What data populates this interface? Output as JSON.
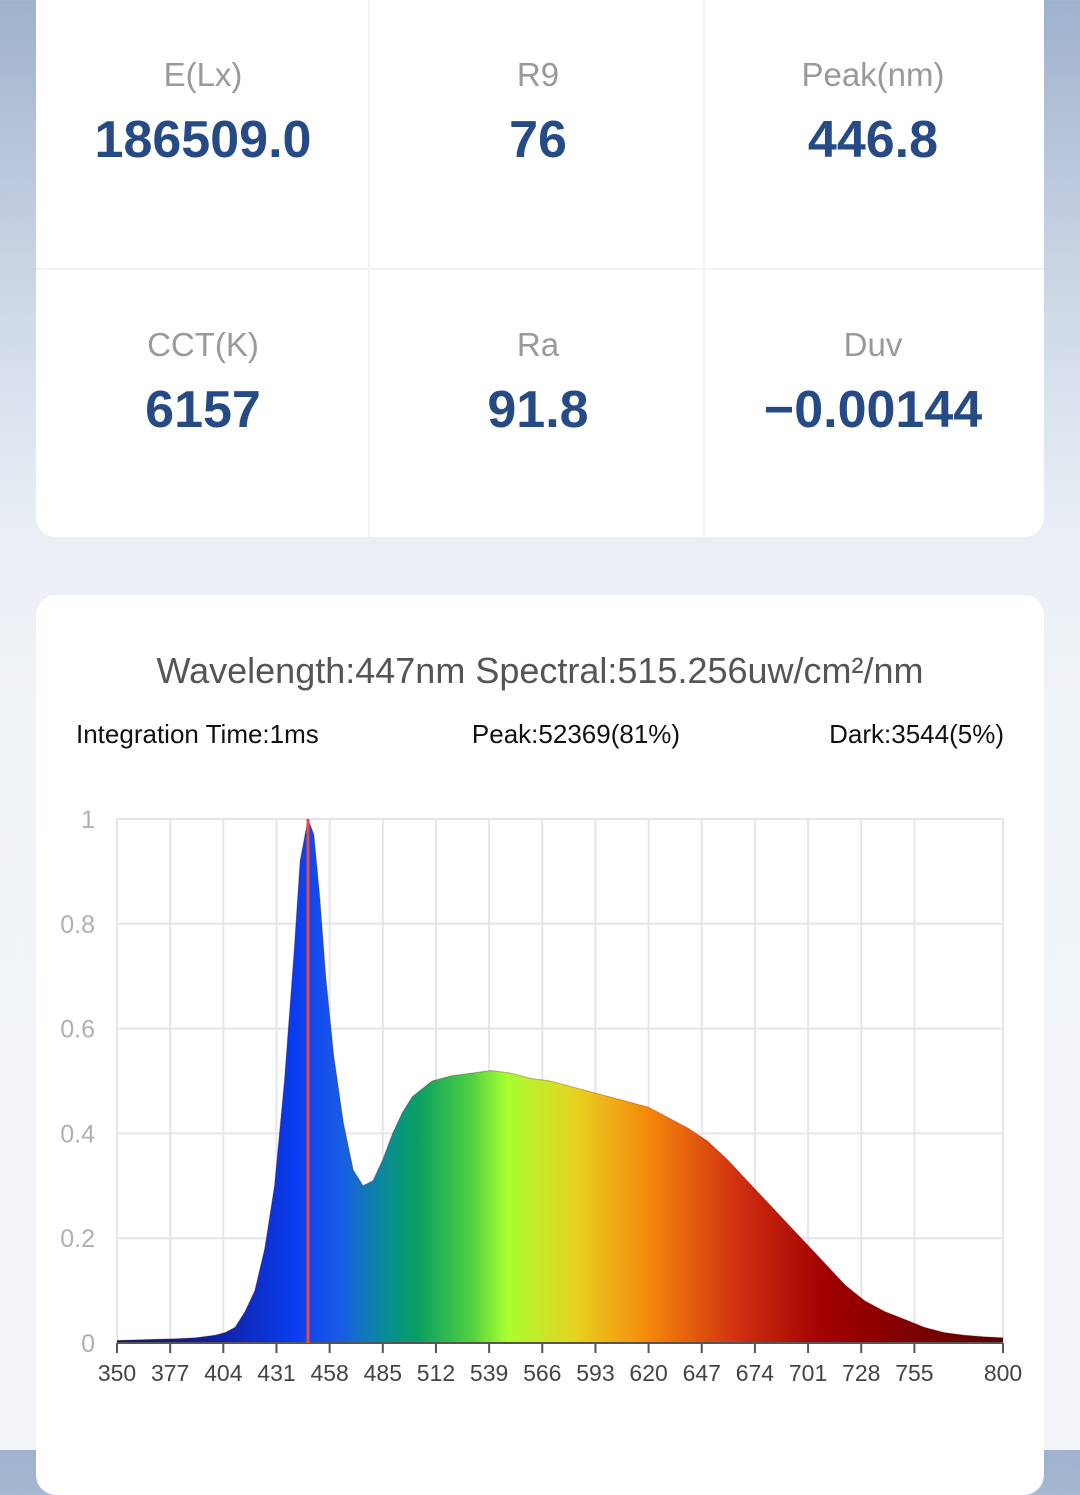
{
  "metrics": [
    {
      "label": "E(Lx)",
      "value": "186509.0"
    },
    {
      "label": "R9",
      "value": "76"
    },
    {
      "label": "Peak(nm)",
      "value": "446.8"
    },
    {
      "label": "CCT(K)",
      "value": "6157"
    },
    {
      "label": "Ra",
      "value": "91.8"
    },
    {
      "label": "Duv",
      "value": "−0.00144"
    }
  ],
  "header": {
    "title": "Wavelength:447nm Spectral:515.256uw/cm²/nm",
    "integration": "Integration Time:1ms",
    "peak": "Peak:52369(81%)",
    "dark": "Dark:3544(5%)"
  },
  "chart_data": {
    "type": "area",
    "x": [
      350,
      360,
      370,
      380,
      390,
      400,
      405,
      410,
      415,
      420,
      425,
      430,
      435,
      440,
      443,
      447,
      450,
      453,
      456,
      460,
      465,
      470,
      475,
      480,
      485,
      490,
      495,
      500,
      510,
      520,
      530,
      540,
      550,
      560,
      570,
      580,
      590,
      600,
      610,
      620,
      630,
      640,
      650,
      660,
      670,
      680,
      690,
      700,
      710,
      720,
      730,
      740,
      750,
      760,
      770,
      780,
      790,
      800
    ],
    "values": [
      0.005,
      0.006,
      0.007,
      0.008,
      0.01,
      0.015,
      0.02,
      0.03,
      0.06,
      0.1,
      0.18,
      0.3,
      0.5,
      0.75,
      0.92,
      1.0,
      0.97,
      0.85,
      0.7,
      0.55,
      0.42,
      0.33,
      0.3,
      0.31,
      0.35,
      0.4,
      0.44,
      0.47,
      0.5,
      0.51,
      0.515,
      0.52,
      0.515,
      0.505,
      0.5,
      0.49,
      0.48,
      0.47,
      0.46,
      0.45,
      0.43,
      0.41,
      0.385,
      0.35,
      0.31,
      0.27,
      0.23,
      0.19,
      0.15,
      0.11,
      0.08,
      0.06,
      0.045,
      0.03,
      0.02,
      0.015,
      0.012,
      0.01
    ],
    "xlim": [
      350,
      800
    ],
    "ylim": [
      0,
      1
    ],
    "xticks": [
      350,
      377,
      404,
      431,
      458,
      485,
      512,
      539,
      566,
      593,
      620,
      647,
      674,
      701,
      728,
      755,
      800
    ],
    "yticks": [
      0,
      0.2,
      0.4,
      0.6,
      0.8,
      1
    ],
    "grid": true,
    "marker_x": 447,
    "marker_color": "#e5484d"
  }
}
